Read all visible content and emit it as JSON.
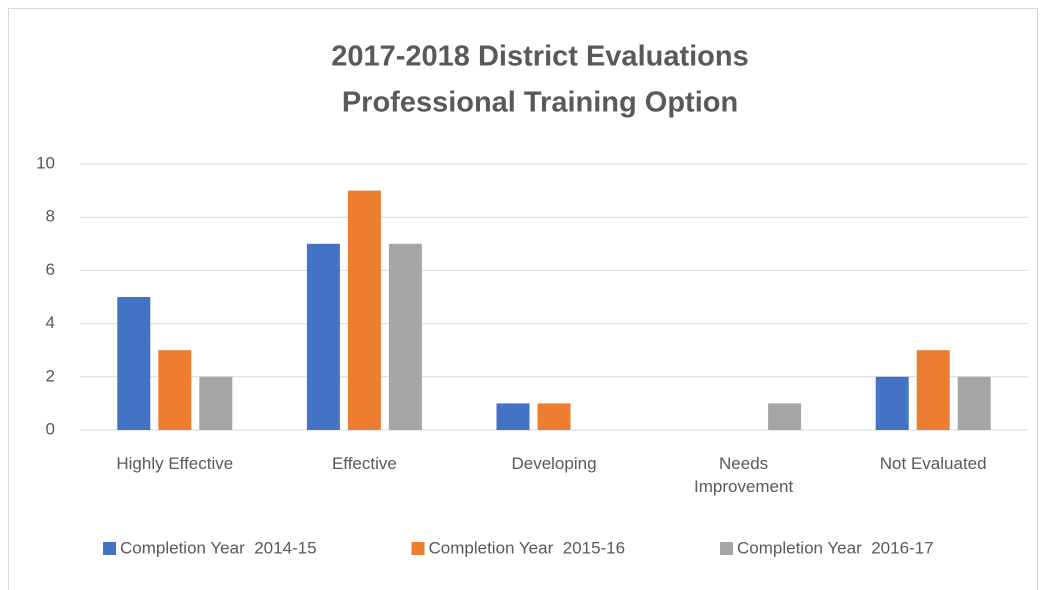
{
  "chart_data": {
    "type": "bar",
    "title": [
      "2017-2018 District Evaluations",
      "Professional Training Option"
    ],
    "categories": [
      "Highly Effective",
      "Effective",
      "Developing",
      "Needs\nImprovement",
      "Not Evaluated"
    ],
    "series": [
      {
        "name": "Completion Year  2014-15",
        "color": "#4472c4",
        "values": [
          5,
          7,
          1,
          0,
          2
        ]
      },
      {
        "name": "Completion Year  2015-16",
        "color": "#ed7d31",
        "values": [
          3,
          9,
          1,
          0,
          3
        ]
      },
      {
        "name": "Completion Year  2016-17",
        "color": "#a5a5a5",
        "values": [
          2,
          7,
          0,
          1,
          2
        ]
      }
    ],
    "ylim": [
      0,
      10
    ],
    "yticks": [
      0,
      2,
      4,
      6,
      8,
      10
    ],
    "grid": true,
    "legend": "bottom"
  }
}
